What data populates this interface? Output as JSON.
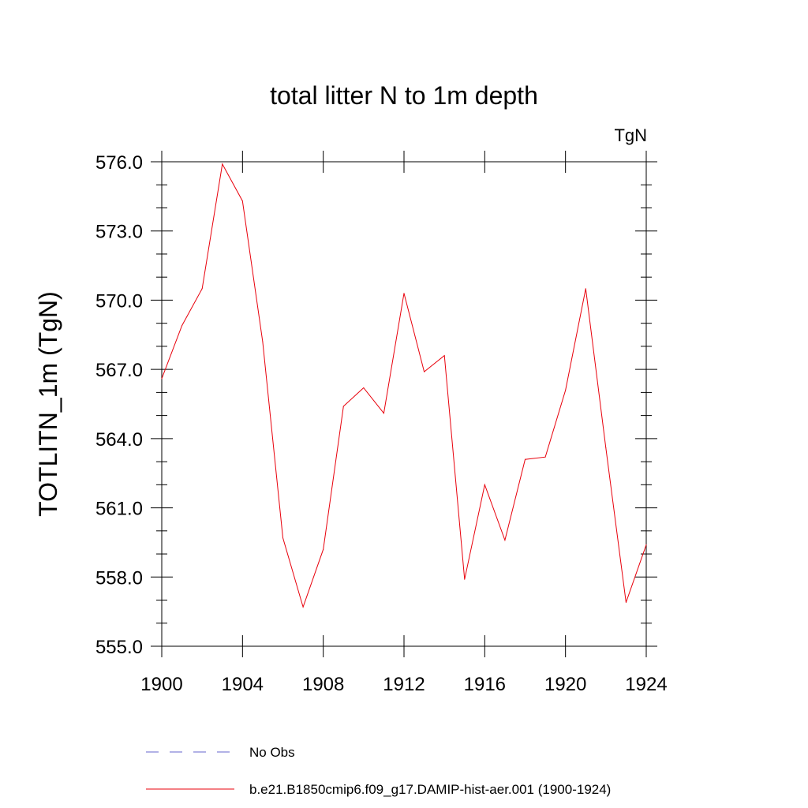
{
  "chart_data": {
    "type": "line",
    "title": "total litter N to 1m depth",
    "units_label": "TgN",
    "ylabel": "TOTLITN_1m  (TgN)",
    "xlabel": "",
    "xlim": [
      1900,
      1924
    ],
    "ylim": [
      555.0,
      576.0
    ],
    "x_ticks": [
      "1900",
      "1904",
      "1908",
      "1912",
      "1916",
      "1920",
      "1924"
    ],
    "y_ticks": [
      "555.0",
      "558.0",
      "561.0",
      "564.0",
      "567.0",
      "570.0",
      "573.0",
      "576.0"
    ],
    "grid": false,
    "legend_position": "bottom",
    "series": [
      {
        "name": "b.e21.B1850cmip6.f09_g17.DAMIP-hist-aer.001 (1900-1924)",
        "color": "#e8000b",
        "style": "solid",
        "x": [
          1900,
          1901,
          1902,
          1903,
          1904,
          1905,
          1906,
          1907,
          1908,
          1909,
          1910,
          1911,
          1912,
          1913,
          1914,
          1915,
          1916,
          1917,
          1918,
          1919,
          1920,
          1921,
          1922,
          1923,
          1924
        ],
        "y": [
          566.6,
          568.9,
          570.5,
          575.9,
          574.3,
          568.2,
          559.7,
          556.7,
          559.2,
          565.4,
          566.2,
          565.1,
          570.3,
          566.9,
          567.6,
          557.9,
          562.0,
          559.6,
          563.1,
          563.2,
          566.1,
          570.5,
          563.6,
          556.9,
          559.4
        ]
      }
    ],
    "legend": [
      {
        "label": "No Obs",
        "color": "#6666cc",
        "style": "dashed"
      },
      {
        "label": "b.e21.B1850cmip6.f09_g17.DAMIP-hist-aer.001 (1900-1924)",
        "color": "#e8000b",
        "style": "solid"
      }
    ]
  }
}
